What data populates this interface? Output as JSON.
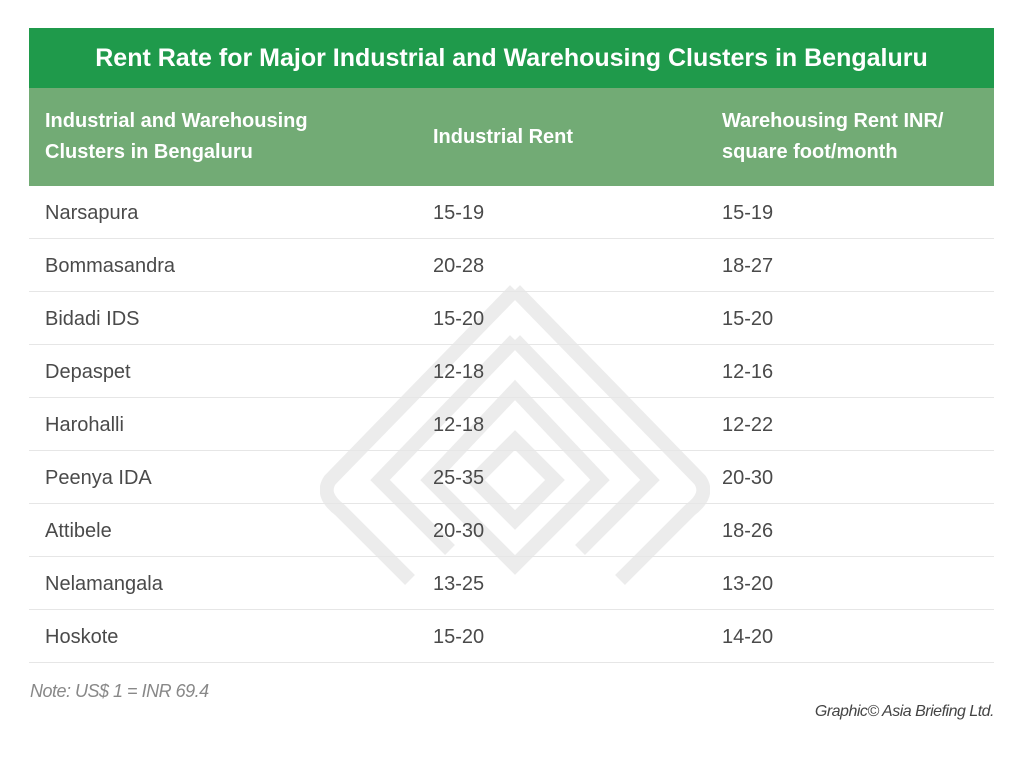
{
  "chart_data": {
    "type": "table",
    "title": "Rent Rate for Major Industrial and Warehousing Clusters in Bengaluru",
    "columns": [
      "Industrial and Warehousing Clusters in Bengaluru",
      "Industrial Rent",
      "Warehousing Rent INR/ square foot/month"
    ],
    "rows": [
      [
        "Narsapura",
        "15-19",
        "15-19"
      ],
      [
        "Bommasandra",
        "20-28",
        "18-27"
      ],
      [
        "Bidadi IDS",
        "15-20",
        "15-20"
      ],
      [
        "Depaspet",
        "12-18",
        "12-16"
      ],
      [
        "Harohalli",
        "12-18",
        "12-22"
      ],
      [
        "Peenya IDA",
        "25-35",
        "20-30"
      ],
      [
        "Attibele",
        "20-30",
        "18-26"
      ],
      [
        "Nelamangala",
        "13-25",
        "13-20"
      ],
      [
        "Hoskote",
        "15-20",
        "14-20"
      ]
    ],
    "note": "Note: US$ 1 = INR 69.4",
    "credit": "Graphic© Asia Briefing Ltd."
  },
  "colors": {
    "title_band": "#1f9a4b",
    "header": "#72ab75"
  }
}
